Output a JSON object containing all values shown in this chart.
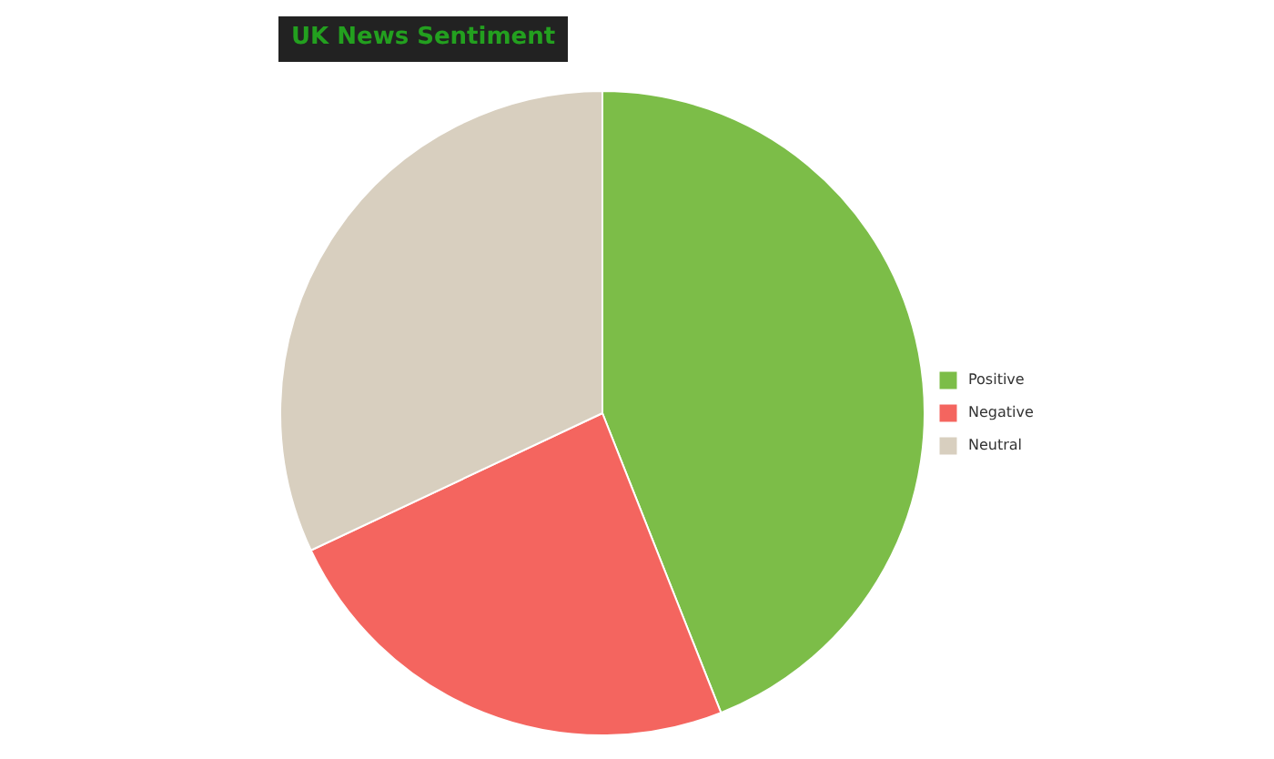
{
  "chart_data": {
    "type": "pie",
    "title": "UK News Sentiment",
    "categories": [
      "Positive",
      "Negative",
      "Neutral"
    ],
    "values": [
      44,
      24,
      32
    ],
    "colors": [
      "#7cbd48",
      "#f4655f",
      "#d8cfbf"
    ],
    "legend": "right"
  }
}
